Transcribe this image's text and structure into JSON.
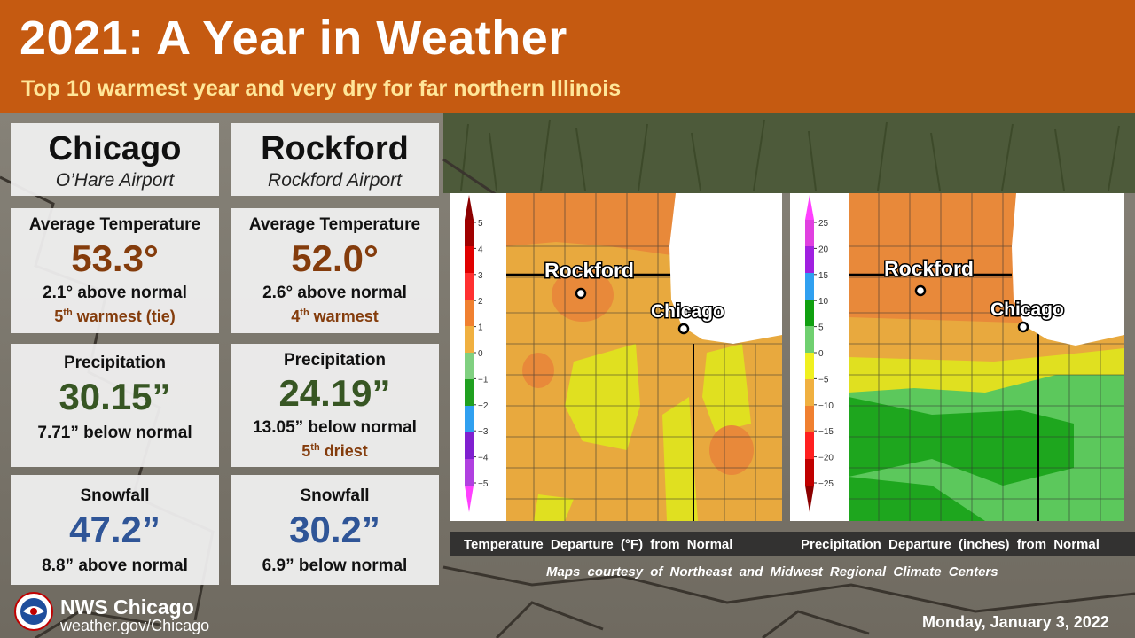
{
  "header": {
    "title": "2021: A Year in Weather",
    "subtitle": "Top 10 warmest year and very dry for far northern Illinois"
  },
  "stations": [
    {
      "city": "Chicago",
      "airport": "O’Hare Airport",
      "temperature": {
        "label": "Average Temperature",
        "value": "53.3°",
        "departure": "2.1° above normal",
        "rank_num": "5",
        "rank_sup": "th",
        "rank_text": " warmest (tie)"
      },
      "precipitation": {
        "label": "Precipitation",
        "value": "30.15”",
        "departure": "7.71” below normal"
      },
      "snowfall": {
        "label": "Snowfall",
        "value": "47.2”",
        "departure": "8.8” above normal"
      }
    },
    {
      "city": "Rockford",
      "airport": "Rockford Airport",
      "temperature": {
        "label": "Average Temperature",
        "value": "52.0°",
        "departure": "2.6° above normal",
        "rank_num": "4",
        "rank_sup": "th",
        "rank_text": " warmest"
      },
      "precipitation": {
        "label": "Precipitation",
        "value": "24.19”",
        "departure": "13.05” below normal",
        "rank_num": "5",
        "rank_sup": "th",
        "rank_text": " driest"
      },
      "snowfall": {
        "label": "Snowfall",
        "value": "30.2”",
        "departure": "6.9” below normal"
      }
    }
  ],
  "maps": {
    "temperature": {
      "caption": "Temperature Departure (°F) from Normal",
      "legend_ticks": [
        "5",
        "4",
        "3",
        "2",
        "1",
        "0",
        "−1",
        "−2",
        "−3",
        "−4",
        "−5"
      ],
      "legend_colors": [
        "#A00000",
        "#E00000",
        "#FF3030",
        "#F08030",
        "#F0B040",
        "#80D080",
        "#20A020",
        "#30A0F0",
        "#8020D0",
        "#B040E0"
      ],
      "labels": {
        "rockford": "Rockford",
        "chicago": "Chicago"
      }
    },
    "precipitation": {
      "caption": "Precipitation Departure (inches) from Normal",
      "legend_ticks": [
        "25",
        "20",
        "15",
        "10",
        "5",
        "0",
        "−5",
        "−10",
        "−15",
        "−20",
        "−25"
      ],
      "legend_colors": [
        "#E040E0",
        "#A020E0",
        "#30A0F0",
        "#10A010",
        "#70D070",
        "#F0F020",
        "#F0B040",
        "#F08030",
        "#FF2020",
        "#C00000"
      ],
      "labels": {
        "rockford": "Rockford",
        "chicago": "Chicago"
      }
    },
    "courtesy": "Maps courtesy of Northeast and Midwest Regional Climate Centers"
  },
  "footer": {
    "office": "NWS Chicago",
    "url": "weather.gov/Chicago",
    "date": "Monday, January 3, 2022"
  },
  "colors": {
    "banner": "#C55A11",
    "subtitle": "#FFE699",
    "temperature_value": "#843C0C",
    "precipitation_value": "#375623",
    "snowfall_value": "#2F5597"
  }
}
